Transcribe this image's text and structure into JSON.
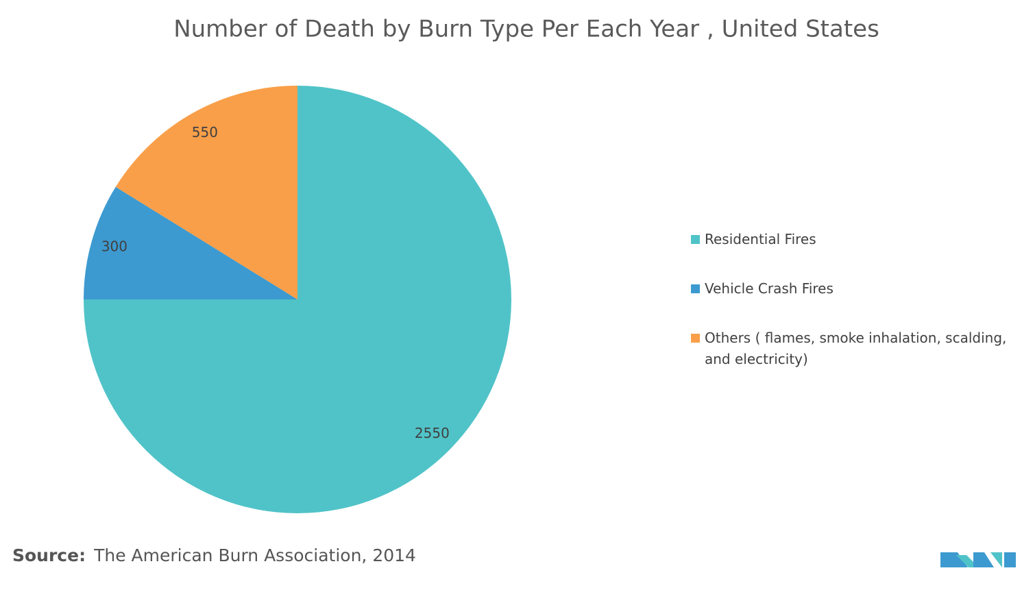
{
  "chart_data": {
    "type": "pie",
    "title": "Number of Death by Burn Type Per Each Year , United States",
    "categories": [
      "Residential Fires",
      "Vehicle Crash Fires",
      "Others ( flames, smoke inhalation, scalding, and electricity)"
    ],
    "values": [
      2550,
      300,
      550
    ],
    "colors": [
      "#50c3c8",
      "#3d9ad0",
      "#f99f49"
    ],
    "legend": "right"
  },
  "source_label": "Source:",
  "source": "The American Burn Association, 2014"
}
